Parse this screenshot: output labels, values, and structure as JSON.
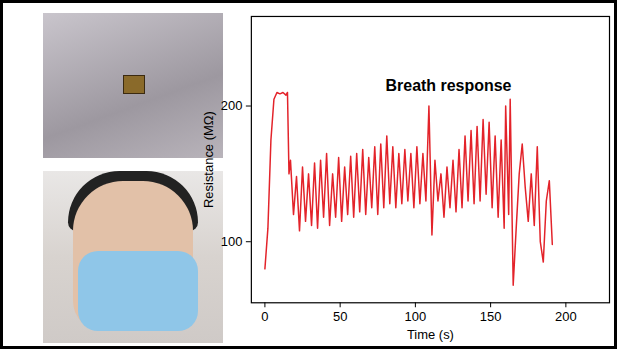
{
  "chart_data": {
    "type": "line",
    "x_label": "Time (s)",
    "y_label": "Resistance (MΩ)",
    "annotations": [
      {
        "text": "Breath response",
        "x": 122,
        "y": 215
      }
    ],
    "xlim": [
      -9,
      229
    ],
    "xticks": [
      0,
      50,
      100,
      150,
      200
    ],
    "ylim": [
      55,
      266
    ],
    "yticks": [
      100,
      200
    ],
    "grid": false,
    "series": [
      {
        "name": "Breath response",
        "color": "#e3232a",
        "x": [
          0,
          2,
          4,
          6,
          8,
          10,
          12,
          14,
          15,
          16,
          17,
          19,
          21,
          23,
          25,
          27,
          29,
          31,
          33,
          35,
          37,
          39,
          41,
          43,
          45,
          47,
          49,
          51,
          53,
          55,
          57,
          59,
          61,
          63,
          65,
          67,
          69,
          71,
          73,
          75,
          77,
          79,
          81,
          83,
          85,
          87,
          89,
          91,
          93,
          95,
          97,
          99,
          101,
          103,
          105,
          107,
          109,
          111,
          113,
          115,
          117,
          119,
          121,
          123,
          125,
          127,
          129,
          131,
          133,
          135,
          137,
          139,
          141,
          143,
          145,
          147,
          149,
          151,
          153,
          155,
          157,
          159,
          160,
          162,
          163,
          165,
          167,
          169,
          171,
          173,
          175,
          177,
          179,
          181,
          183,
          185,
          187,
          189,
          191
        ],
        "values": [
          80,
          110,
          175,
          205,
          210,
          209,
          210,
          208,
          210,
          150,
          160,
          120,
          148,
          108,
          155,
          115,
          150,
          112,
          158,
          110,
          160,
          118,
          165,
          112,
          150,
          118,
          162,
          115,
          155,
          120,
          163,
          118,
          165,
          122,
          168,
          120,
          162,
          125,
          170,
          120,
          172,
          125,
          178,
          128,
          170,
          125,
          165,
          128,
          168,
          130,
          165,
          125,
          170,
          128,
          165,
          130,
          200,
          105,
          160,
          130,
          150,
          118,
          155,
          125,
          160,
          122,
          168,
          125,
          178,
          130,
          182,
          128,
          185,
          130,
          190,
          135,
          188,
          125,
          178,
          118,
          175,
          110,
          200,
          120,
          205,
          68,
          110,
          150,
          172,
          140,
          115,
          150,
          112,
          170,
          100,
          85,
          130,
          145,
          98
        ]
      }
    ]
  }
}
